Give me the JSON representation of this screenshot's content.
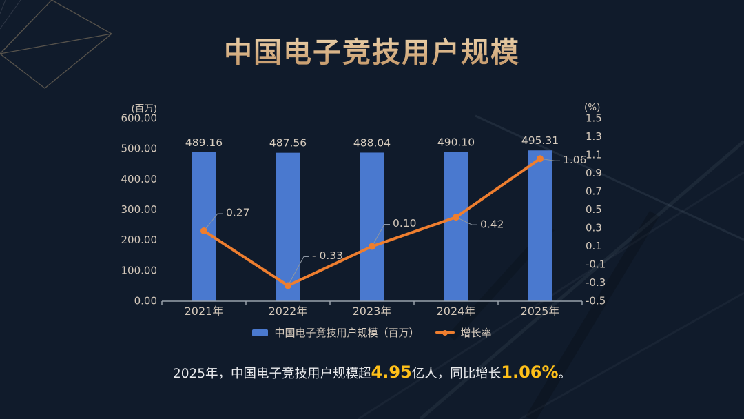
{
  "title": "中国电子竞技用户规模",
  "chart_data": {
    "type": "bar",
    "subtype": "bar-line-combo",
    "categories": [
      "2021年",
      "2022年",
      "2023年",
      "2024年",
      "2025年"
    ],
    "series": [
      {
        "name": "中国电子竞技用户规模（百万）",
        "type": "bar",
        "axis": "left",
        "color": "#4a79cf",
        "values": [
          489.16,
          487.56,
          488.04,
          490.1,
          495.31
        ],
        "labels": [
          "489.16",
          "487.56",
          "488.04",
          "490.10",
          "495.31"
        ]
      },
      {
        "name": "增长率",
        "type": "line",
        "axis": "right",
        "color": "#ee7e2f",
        "values": [
          0.27,
          -0.33,
          0.1,
          0.42,
          1.06
        ],
        "labels": [
          "0.27",
          "- 0.33",
          "0.10",
          "0.42",
          "1.06"
        ]
      }
    ],
    "left_axis": {
      "unit": "(百万)",
      "min": 0,
      "max": 600,
      "ticks": [
        "600.00",
        "500.00",
        "400.00",
        "300.00",
        "200.00",
        "100.00",
        "0.00"
      ]
    },
    "right_axis": {
      "unit": "(%)",
      "min": -0.5,
      "max": 1.5,
      "ticks": [
        "1.5",
        "1.3",
        "1.1",
        "0.9",
        "0.7",
        "0.5",
        "0.3",
        "0.1",
        "-0.1",
        "-0.3",
        "-0.5"
      ]
    },
    "grid": false,
    "legend_position": "bottom"
  },
  "legend": {
    "bar_label": "中国电子竞技用户规模（百万）",
    "line_label": "增长率"
  },
  "caption": {
    "part1": "2025年，中国电子竞技用户规模超",
    "value1": "4.95",
    "part2": "亿人，同比增长",
    "value2": "1.06%",
    "part3": "。"
  },
  "colors": {
    "background": "#101b2b",
    "bar": "#4a79cf",
    "line": "#ee7e2f",
    "axis_text": "#d4c8ba",
    "axis_line": "#98a1ab",
    "title_gold": "#d9b488",
    "highlight_gold": "#ffc019",
    "caption_text": "#eaebed"
  }
}
